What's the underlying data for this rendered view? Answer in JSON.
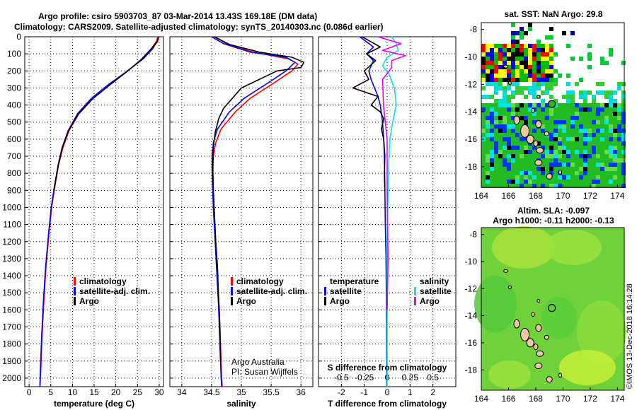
{
  "header": {
    "title_line1": "Argo profile: csiro 5903703_87 03-Mar-2014 13.43S 169.18E (DM data)",
    "title_line2": "Climatology: CARS2009. Satellite-adjusted climatology: synTS_20140303.nc (0.086d earlier)"
  },
  "colors": {
    "climatology": "#ff0000",
    "satellite": "#0000ff",
    "argo": "#000000",
    "sal_satellite": "#00e5e5",
    "sal_argo": "#ee00ee",
    "grid": "#000000"
  },
  "chart_data": [
    {
      "id": "temperature",
      "type": "line",
      "xlabel": "temperature (deg C)",
      "ylabel": "",
      "xlim": [
        -1,
        31
      ],
      "ylim": [
        2050,
        0
      ],
      "xticks": [
        "0",
        "5",
        "10",
        "15",
        "20",
        "25",
        "30"
      ],
      "xtick_values": [
        0,
        5,
        10,
        15,
        20,
        25,
        30
      ],
      "yticks": [
        "0",
        "100",
        "200",
        "300",
        "400",
        "500",
        "600",
        "700",
        "800",
        "900",
        "1000",
        "1100",
        "1200",
        "1300",
        "1400",
        "1500",
        "1600",
        "1700",
        "1800",
        "1900",
        "2000"
      ],
      "ytick_values": [
        0,
        100,
        200,
        300,
        400,
        500,
        600,
        700,
        800,
        900,
        1000,
        1100,
        1200,
        1300,
        1400,
        1500,
        1600,
        1700,
        1800,
        1900,
        2000
      ],
      "grid": true,
      "legend": [
        "climatology",
        "satellite-adj. clim.",
        "Argo"
      ],
      "series": [
        {
          "name": "climatology",
          "color_key": "climatology",
          "x": [
            29.7,
            29.4,
            28.2,
            26.0,
            22.8,
            18.7,
            14.8,
            11.5,
            9.2,
            7.8,
            6.8,
            5.8,
            5.2,
            4.6,
            3.9,
            3.4,
            3.0,
            2.7,
            2.5
          ],
          "y": [
            0,
            25,
            70,
            130,
            200,
            280,
            360,
            450,
            550,
            650,
            750,
            900,
            1000,
            1150,
            1350,
            1550,
            1750,
            1950,
            2050
          ]
        },
        {
          "name": "satellite-adj. clim.",
          "color_key": "satellite",
          "x": [
            29.9,
            29.6,
            28.5,
            26.3,
            22.7,
            18.3,
            14.4,
            11.2,
            9.0,
            7.6,
            6.7,
            5.7,
            5.1,
            4.5,
            3.8,
            3.3,
            2.9,
            2.6,
            2.5
          ],
          "y": [
            0,
            25,
            70,
            130,
            200,
            280,
            360,
            450,
            550,
            650,
            750,
            900,
            1000,
            1150,
            1350,
            1550,
            1750,
            1950,
            2050
          ]
        },
        {
          "name": "Argo",
          "color_key": "argo",
          "x": [
            29.8,
            29.6,
            28.0,
            25.8,
            22.5,
            18.5,
            14.6,
            11.3,
            9.0,
            7.6,
            6.7,
            5.7
          ],
          "y": [
            5,
            30,
            75,
            135,
            205,
            285,
            365,
            455,
            555,
            655,
            755,
            900
          ]
        }
      ]
    },
    {
      "id": "salinity",
      "type": "line",
      "xlabel": "salinity",
      "ylabel": "",
      "xlim": [
        33.8,
        36.2
      ],
      "ylim": [
        2050,
        0
      ],
      "xticks": [
        "34",
        "34.5",
        "35",
        "35.5",
        "36"
      ],
      "xtick_values": [
        34,
        34.5,
        35,
        35.5,
        36
      ],
      "grid": true,
      "legend": [
        "climatology",
        "satellite-adj. clim.",
        "Argo"
      ],
      "annotations": [
        "Argo Australia",
        "PI: Susan Wijffels"
      ],
      "series": [
        {
          "name": "climatology",
          "color_key": "climatology",
          "x": [
            34.55,
            34.75,
            35.2,
            35.8,
            35.95,
            35.85,
            35.55,
            35.15,
            34.9,
            34.66,
            34.57,
            34.53,
            34.52,
            34.54,
            34.57,
            34.6,
            34.63,
            34.65,
            34.67,
            34.68
          ],
          "y": [
            0,
            40,
            90,
            130,
            160,
            200,
            270,
            360,
            440,
            540,
            620,
            700,
            800,
            1000,
            1200,
            1400,
            1600,
            1800,
            2000,
            2050
          ]
        },
        {
          "name": "satellite-adj. clim.",
          "color_key": "satellite",
          "x": [
            34.5,
            34.7,
            35.15,
            35.75,
            35.9,
            35.75,
            35.45,
            35.05,
            34.8,
            34.6,
            34.53,
            34.51,
            34.51,
            34.53,
            34.56,
            34.59,
            34.62,
            34.64,
            34.66,
            34.67
          ],
          "y": [
            0,
            40,
            90,
            120,
            150,
            200,
            270,
            360,
            440,
            540,
            620,
            700,
            800,
            1000,
            1200,
            1400,
            1600,
            1800,
            2000,
            2050
          ]
        },
        {
          "name": "Argo",
          "color_key": "argo",
          "x": [
            34.55,
            34.8,
            35.3,
            35.85,
            36.05,
            36.0,
            35.6,
            35.0,
            34.8,
            34.7,
            34.62,
            34.56,
            34.53,
            34.52,
            34.53,
            34.55,
            34.57,
            34.6,
            34.62,
            34.64,
            34.65
          ],
          "y": [
            0,
            45,
            90,
            120,
            150,
            180,
            200,
            300,
            380,
            420,
            480,
            560,
            650,
            750,
            900,
            1050,
            1200,
            1350,
            1550,
            1700,
            1900
          ]
        }
      ]
    },
    {
      "id": "difference",
      "type": "line",
      "xlabel": "T difference from climatology",
      "xlabel_top": "S difference from climatology",
      "ylabel": "",
      "xlim": [
        -3,
        3
      ],
      "ylim": [
        2050,
        0
      ],
      "xticks": [
        "-2",
        "-1",
        "0",
        "1",
        "2"
      ],
      "xtick_values": [
        -2,
        -1,
        0,
        1,
        2
      ],
      "sticks": [
        "-0.5",
        "-0.25",
        "0",
        "0.25",
        "0.5"
      ],
      "stick_values": [
        -0.5,
        -0.25,
        0,
        0.25,
        0.5
      ],
      "grid": true,
      "legend_temperature_title": "temperature",
      "legend_salinity_title": "salinity",
      "legend_temperature": [
        "satellite",
        "Argo"
      ],
      "legend_salinity": [
        "satellite",
        "Argo"
      ],
      "series": [
        {
          "name": "satellite",
          "group": "temperature",
          "color_key": "satellite",
          "axis": "T",
          "x": [
            -1.2,
            -0.9,
            -0.6,
            -0.9,
            -0.6,
            -0.8,
            -0.7,
            -0.55,
            -0.4,
            -0.3,
            -0.25,
            -0.2,
            -0.15,
            -0.12,
            -0.1,
            -0.08,
            -0.05,
            -0.03,
            -0.02
          ],
          "y": [
            0,
            30,
            60,
            100,
            140,
            200,
            250,
            300,
            350,
            400,
            450,
            500,
            600,
            700,
            900,
            1100,
            1300,
            1600,
            2050
          ]
        },
        {
          "name": "Argo",
          "group": "temperature",
          "color_key": "argo",
          "axis": "T",
          "x": [
            -1.1,
            -0.7,
            -0.3,
            -0.9,
            -0.5,
            -1.0,
            -0.8,
            -1.5,
            -0.4,
            -0.7,
            -0.3,
            -0.15,
            -0.25,
            -0.15,
            -0.1,
            -0.12,
            -0.1
          ],
          "y": [
            0,
            30,
            60,
            100,
            140,
            200,
            250,
            300,
            350,
            400,
            440,
            480,
            540,
            600,
            700,
            800,
            900
          ]
        },
        {
          "name": "satellite",
          "group": "salinity",
          "color_key": "sal_satellite",
          "axis": "S",
          "x": [
            0.05,
            0.1,
            0.12,
            0.0,
            -0.05,
            0.02,
            0.08,
            0.1,
            0.06,
            0.03,
            0.02,
            0.01,
            0.0,
            0.0,
            0.0
          ],
          "y": [
            0,
            40,
            80,
            120,
            170,
            220,
            300,
            400,
            500,
            600,
            700,
            900,
            1200,
            1600,
            2050
          ]
        },
        {
          "name": "Argo",
          "group": "salinity",
          "color_key": "sal_argo",
          "axis": "S",
          "x": [
            -0.1,
            0.15,
            -0.05,
            0.2,
            0.05,
            0.05,
            -0.05,
            -0.04,
            0.0,
            0.0,
            0.01,
            0.0
          ],
          "y": [
            0,
            40,
            80,
            110,
            140,
            180,
            250,
            400,
            600,
            900,
            1300,
            1600
          ]
        }
      ]
    },
    {
      "id": "sst-map",
      "type": "heatmap",
      "title": "sat. SST: NaN Argo: 29.8",
      "xlim": [
        164,
        174.5
      ],
      "ylim": [
        -19.5,
        -7.5
      ],
      "xticks": [
        "164",
        "166",
        "168",
        "170",
        "172",
        "174"
      ],
      "xtick_values": [
        164,
        166,
        168,
        170,
        172,
        174
      ],
      "yticks": [
        "-8",
        "-10",
        "-12",
        "-14",
        "-16",
        "-18"
      ],
      "ytick_values": [
        -8,
        -10,
        -12,
        -14,
        -16,
        -18
      ],
      "argo_position": [
        169.18,
        -13.43
      ]
    },
    {
      "id": "sla-map",
      "type": "heatmap",
      "title_line1": "Altim. SLA: -0.097",
      "title_line2": "Argo h1000: -0.11 h2000: -0.13",
      "xlim": [
        164,
        174.5
      ],
      "ylim": [
        -19.5,
        -7.5
      ],
      "xticks": [
        "164",
        "166",
        "168",
        "170",
        "172",
        "174"
      ],
      "xtick_values": [
        164,
        166,
        168,
        170,
        172,
        174
      ],
      "yticks": [
        "-8",
        "-10",
        "-12",
        "-14",
        "-16",
        "-18"
      ],
      "ytick_values": [
        -8,
        -10,
        -12,
        -14,
        -16,
        -18
      ],
      "argo_position": [
        169.18,
        -13.43
      ]
    }
  ],
  "footer": {
    "credit": "©IMOS 13-Dec-2018 16:14:28"
  }
}
